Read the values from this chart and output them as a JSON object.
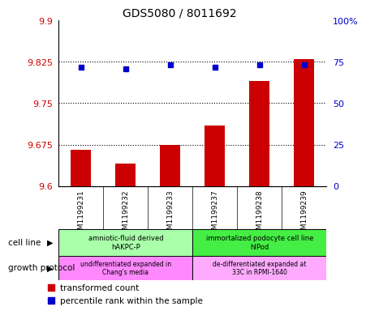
{
  "title": "GDS5080 / 8011692",
  "samples": [
    "GSM1199231",
    "GSM1199232",
    "GSM1199233",
    "GSM1199237",
    "GSM1199238",
    "GSM1199239"
  ],
  "transformed_counts": [
    9.665,
    9.64,
    9.675,
    9.71,
    9.79,
    9.83
  ],
  "percentile_ranks": [
    72,
    71,
    73,
    72,
    73,
    73
  ],
  "ylim_left": [
    9.6,
    9.9
  ],
  "ylim_right": [
    0,
    100
  ],
  "yticks_left": [
    9.6,
    9.675,
    9.75,
    9.825,
    9.9
  ],
  "ytick_labels_left": [
    "9.6",
    "9.675",
    "9.75",
    "9.825",
    "9.9"
  ],
  "yticks_right": [
    0,
    25,
    50,
    75,
    100
  ],
  "ytick_labels_right": [
    "0",
    "25",
    "50",
    "75",
    "100%"
  ],
  "hlines": [
    9.675,
    9.75,
    9.825
  ],
  "bar_color": "#cc0000",
  "dot_color": "#0000cc",
  "bar_width": 0.45,
  "cell_line_groups": [
    {
      "label": "amniotic-fluid derived\nhAKPC-P",
      "samples": [
        0,
        1,
        2
      ],
      "color": "#aaffaa"
    },
    {
      "label": "immortalized podocyte cell line\nhIPod",
      "samples": [
        3,
        4,
        5
      ],
      "color": "#44ee44"
    }
  ],
  "growth_protocol_groups": [
    {
      "label": "undifferentiated expanded in\nChang's media",
      "samples": [
        0,
        1,
        2
      ],
      "color": "#ff88ff"
    },
    {
      "label": "de-differentiated expanded at\n33C in RPMI-1640",
      "samples": [
        3,
        4,
        5
      ],
      "color": "#ffaaff"
    }
  ],
  "cell_line_label": "cell line",
  "growth_protocol_label": "growth protocol",
  "legend_items": [
    {
      "label": "transformed count",
      "color": "#cc0000"
    },
    {
      "label": "percentile rank within the sample",
      "color": "#0000cc"
    }
  ],
  "bg_color": "#ffffff",
  "plot_bg_color": "#ffffff",
  "tick_label_color_left": "#cc0000",
  "tick_label_color_right": "#0000cc",
  "title_color": "#000000",
  "xlabel_area_color": "#cccccc"
}
